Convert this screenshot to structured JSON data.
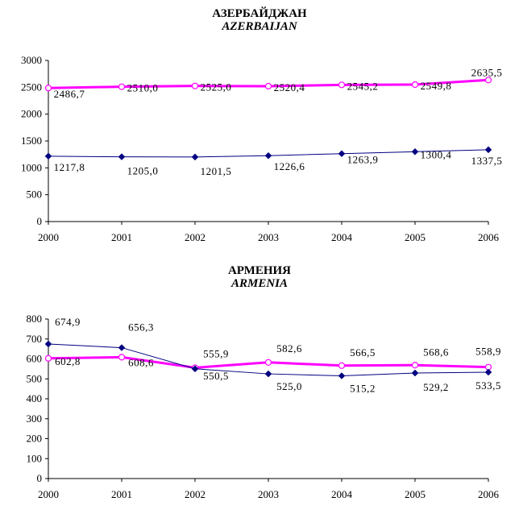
{
  "chart_data": [
    {
      "type": "line",
      "title": "АЗЕРБАЙДЖАН",
      "subtitle": "AZERBAIJAN",
      "categories": [
        "2000",
        "2001",
        "2002",
        "2003",
        "2004",
        "2005",
        "2006"
      ],
      "ylim": [
        0,
        3000
      ],
      "yticks": [
        0,
        500,
        1000,
        1500,
        2000,
        2500,
        3000
      ],
      "grid": false,
      "series": [
        {
          "values": [
            2486.7,
            2510.0,
            2525.0,
            2520.4,
            2545.2,
            2549.8,
            2635.5
          ],
          "labels": [
            "2486,7",
            "2510,0",
            "2525,0",
            "2520,4",
            "2545,2",
            "2549,8",
            "2635,5"
          ],
          "color": "#ff00ff",
          "marker": "open-circle"
        },
        {
          "values": [
            1217.8,
            1205.0,
            1201.5,
            1226.6,
            1263.9,
            1300.4,
            1337.5
          ],
          "labels": [
            "1217,8",
            "1205,0",
            "1201,5",
            "1226,6",
            "1263,9",
            "1300,4",
            "1337,5"
          ],
          "color": "#000080",
          "marker": "filled-diamond"
        }
      ]
    },
    {
      "type": "line",
      "title": "АРМЕНИЯ",
      "subtitle": "ARMENIA",
      "categories": [
        "2000",
        "2001",
        "2002",
        "2003",
        "2004",
        "2005",
        "2006"
      ],
      "ylim": [
        0,
        800
      ],
      "yticks": [
        0,
        100,
        200,
        300,
        400,
        500,
        600,
        700,
        800
      ],
      "grid": false,
      "series": [
        {
          "values": [
            602.8,
            608.6,
            555.9,
            582.6,
            566.5,
            568.6,
            558.9
          ],
          "labels": [
            "602,8",
            "608,6",
            "555,9",
            "582,6",
            "566,5",
            "568,6",
            "558,9"
          ],
          "color": "#ff00ff",
          "marker": "open-circle"
        },
        {
          "values": [
            674.9,
            656.3,
            550.5,
            525.0,
            515.2,
            529.2,
            533.5
          ],
          "labels": [
            "674,9",
            "656,3",
            "550,5",
            "525,0",
            "515,2",
            "529,2",
            "533,5"
          ],
          "color": "#000080",
          "marker": "filled-diamond"
        }
      ]
    }
  ]
}
